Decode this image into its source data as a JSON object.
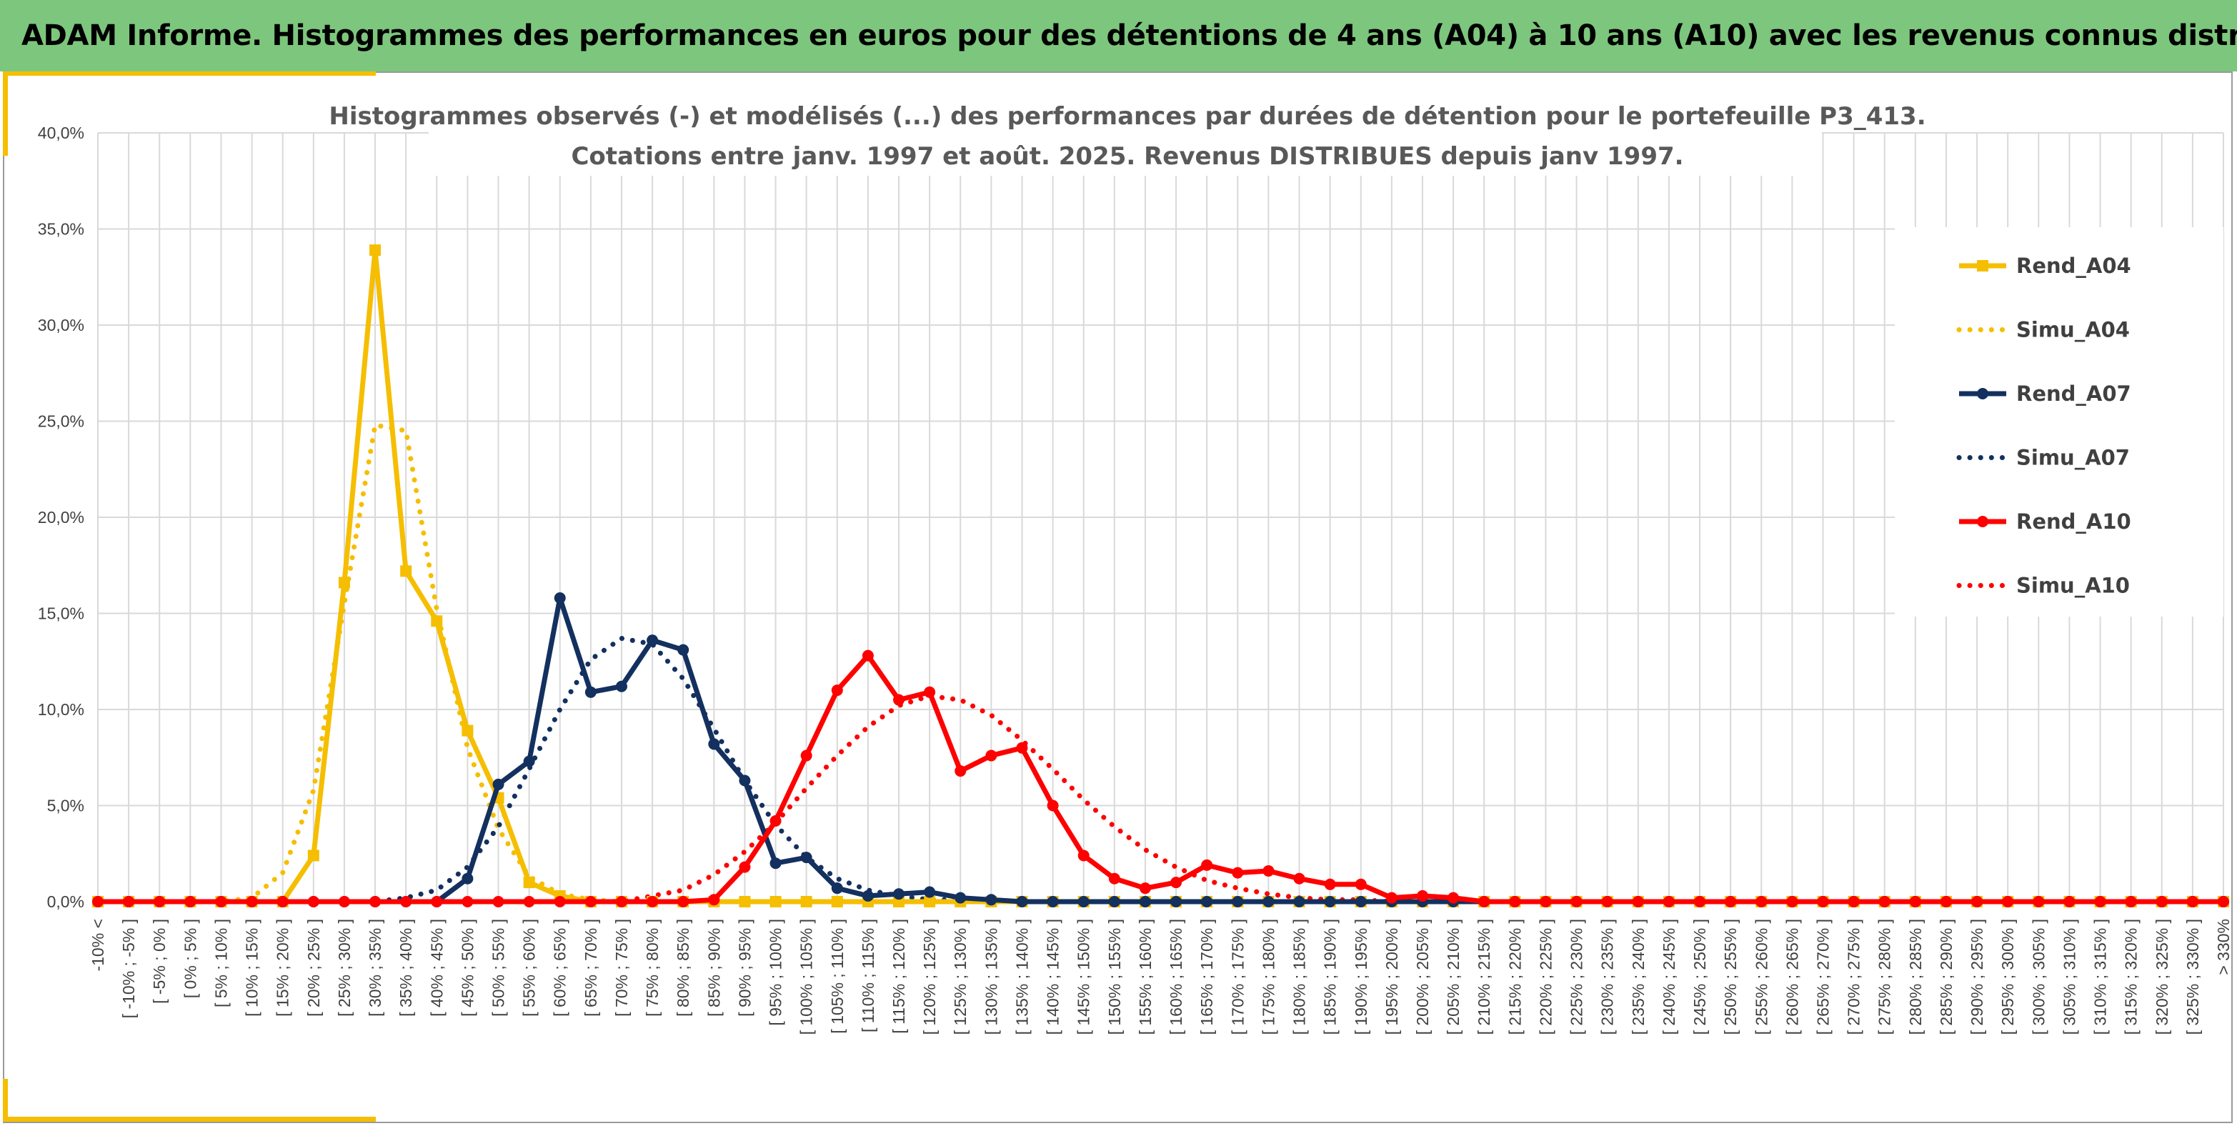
{
  "banner": {
    "title": "ADAM Informe. Histogrammes des performances en euros pour des détentions de 4 ans (A04) à 10 ans (A10) avec les revenus connus distribués"
  },
  "colors": {
    "banner": "#7dc67d",
    "accent": "#f5be00",
    "A04": "#f5be00",
    "A07": "#13305f",
    "A10": "#ff0000"
  },
  "chart_data": {
    "type": "line",
    "title": [
      "Histogrammes observés (-) et modélisés (...) des performances par durées de détention pour le portefeuille P3_413.",
      "Cotations entre janv. 1997 et août. 2025. Revenus DISTRIBUES depuis janv 1997."
    ],
    "legend_position": "right",
    "grid": true,
    "ylim": [
      0,
      40
    ],
    "yticks": [
      "0,0%",
      "5,0%",
      "10,0%",
      "15,0%",
      "20,0%",
      "25,0%",
      "30,0%",
      "35,0%",
      "40,0%"
    ],
    "categories": [
      "-10% <",
      "[ -10% ; -5% ]",
      "[ -5% ; 0% ]",
      "[ 0% ; 5% ]",
      "[ 5% ; 10% ]",
      "[ 10% ; 15% ]",
      "[ 15% ; 20% ]",
      "[ 20% ; 25% ]",
      "[ 25% ; 30% ]",
      "[ 30% ; 35% ]",
      "[ 35% ; 40% ]",
      "[ 40% ; 45% ]",
      "[ 45% ; 50% ]",
      "[ 50% ; 55% ]",
      "[ 55% ; 60% ]",
      "[ 60% ; 65% ]",
      "[ 65% ; 70% ]",
      "[ 70% ; 75% ]",
      "[ 75% ; 80% ]",
      "[ 80% ; 85% ]",
      "[ 85% ; 90% ]",
      "[ 90% ; 95% ]",
      "[ 95% ; 100% ]",
      "[ 100% ; 105% ]",
      "[ 105% ; 110% ]",
      "[ 110% ; 115% ]",
      "[ 115% ; 120% ]",
      "[ 120% ; 125% ]",
      "[ 125% ; 130% ]",
      "[ 130% ; 135% ]",
      "[ 135% ; 140% ]",
      "[ 140% ; 145% ]",
      "[ 145% ; 150% ]",
      "[ 150% ; 155% ]",
      "[ 155% ; 160% ]",
      "[ 160% ; 165% ]",
      "[ 165% ; 170% ]",
      "[ 170% ; 175% ]",
      "[ 175% ; 180% ]",
      "[ 180% ; 185% ]",
      "[ 185% ; 190% ]",
      "[ 190% ; 195% ]",
      "[ 195% ; 200% ]",
      "[ 200% ; 205% ]",
      "[ 205% ; 210% ]",
      "[ 210% ; 215% ]",
      "[ 215% ; 220% ]",
      "[ 220% ; 225% ]",
      "[ 225% ; 230% ]",
      "[ 230% ; 235% ]",
      "[ 235% ; 240% ]",
      "[ 240% ; 245% ]",
      "[ 245% ; 250% ]",
      "[ 250% ; 255% ]",
      "[ 255% ; 260% ]",
      "[ 260% ; 265% ]",
      "[ 265% ; 270% ]",
      "[ 270% ; 275% ]",
      "[ 275% ; 280% ]",
      "[ 280% ; 285% ]",
      "[ 285% ; 290% ]",
      "[ 290% ; 295% ]",
      "[ 295% ; 300% ]",
      "[ 300% ; 305% ]",
      "[ 305% ; 310% ]",
      "[ 310% ; 315% ]",
      "[ 315% ; 320% ]",
      "[ 320% ; 325% ]",
      "[ 325% ; 330% ]",
      "> 330%"
    ],
    "series": [
      {
        "name": "Rend_A04",
        "style": "solid",
        "marker": "square",
        "color": "#f5be00",
        "values": [
          0,
          0,
          0,
          0,
          0,
          0,
          0,
          2.4,
          16.6,
          33.9,
          17.2,
          14.6,
          8.9,
          5.4,
          1.0,
          0.3,
          0,
          0,
          0,
          0,
          0,
          0,
          0,
          0,
          0,
          0,
          0,
          0,
          0,
          0,
          0,
          0,
          0,
          0,
          0,
          0,
          0,
          0,
          0,
          0,
          0,
          0,
          0,
          0,
          0,
          0,
          0,
          0,
          0,
          0,
          0,
          0,
          0,
          0,
          0,
          0,
          0,
          0,
          0,
          0,
          0,
          0,
          0,
          0,
          0,
          0,
          0,
          0,
          0,
          0
        ]
      },
      {
        "name": "Simu_A04",
        "style": "dotted",
        "marker": "none",
        "color": "#f5be00",
        "values": [
          0,
          0,
          0,
          0,
          0,
          0.2,
          1.5,
          5.8,
          15.5,
          24.8,
          24.5,
          15.2,
          8.0,
          3.8,
          1.3,
          0.4,
          0.1,
          0,
          0,
          0,
          0,
          0,
          0,
          0,
          0,
          0,
          0,
          0,
          0,
          0,
          0,
          0,
          0,
          0,
          0,
          0,
          0,
          0,
          0,
          0,
          0,
          0,
          0,
          0,
          0,
          0,
          0,
          0,
          0,
          0,
          0,
          0,
          0,
          0,
          0,
          0,
          0,
          0,
          0,
          0,
          0,
          0,
          0,
          0,
          0,
          0,
          0,
          0,
          0,
          0
        ]
      },
      {
        "name": "Rend_A07",
        "style": "solid",
        "marker": "circle",
        "color": "#13305f",
        "values": [
          0,
          0,
          0,
          0,
          0,
          0,
          0,
          0,
          0,
          0,
          0,
          0,
          1.2,
          6.1,
          7.3,
          15.8,
          10.9,
          11.2,
          13.6,
          13.1,
          8.2,
          6.3,
          2.0,
          2.3,
          0.7,
          0.3,
          0.4,
          0.5,
          0.2,
          0.1,
          0,
          0,
          0,
          0,
          0,
          0,
          0,
          0,
          0,
          0,
          0,
          0,
          0,
          0,
          0,
          0,
          0,
          0,
          0,
          0,
          0,
          0,
          0,
          0,
          0,
          0,
          0,
          0,
          0,
          0,
          0,
          0,
          0,
          0,
          0,
          0,
          0,
          0,
          0,
          0
        ]
      },
      {
        "name": "Simu_A07",
        "style": "dotted",
        "marker": "none",
        "color": "#13305f",
        "values": [
          0,
          0,
          0,
          0,
          0,
          0,
          0,
          0,
          0,
          0,
          0.2,
          0.6,
          1.8,
          3.9,
          6.9,
          10.0,
          12.6,
          13.7,
          13.4,
          11.6,
          9.0,
          6.3,
          4.0,
          2.3,
          1.2,
          0.6,
          0.3,
          0.1,
          0.1,
          0,
          0,
          0,
          0,
          0,
          0,
          0,
          0,
          0,
          0,
          0,
          0,
          0,
          0,
          0,
          0,
          0,
          0,
          0,
          0,
          0,
          0,
          0,
          0,
          0,
          0,
          0,
          0,
          0,
          0,
          0,
          0,
          0,
          0,
          0,
          0,
          0,
          0,
          0,
          0,
          0
        ]
      },
      {
        "name": "Rend_A10",
        "style": "solid",
        "marker": "circle",
        "color": "#ff0000",
        "values": [
          0,
          0,
          0,
          0,
          0,
          0,
          0,
          0,
          0,
          0,
          0,
          0,
          0,
          0,
          0,
          0,
          0,
          0,
          0,
          0,
          0.1,
          1.8,
          4.2,
          7.6,
          11.0,
          12.8,
          10.5,
          10.9,
          6.8,
          7.6,
          8.0,
          5.0,
          2.4,
          1.2,
          0.7,
          1.0,
          1.9,
          1.5,
          1.6,
          1.2,
          0.9,
          0.9,
          0.2,
          0.3,
          0.2,
          0,
          0,
          0,
          0,
          0,
          0,
          0,
          0,
          0,
          0,
          0,
          0,
          0,
          0,
          0,
          0,
          0,
          0,
          0,
          0,
          0,
          0,
          0,
          0,
          0
        ]
      },
      {
        "name": "Simu_A10",
        "style": "dotted",
        "marker": "none",
        "color": "#ff0000",
        "values": [
          0,
          0,
          0,
          0,
          0,
          0,
          0,
          0,
          0,
          0,
          0,
          0,
          0,
          0,
          0,
          0,
          0,
          0,
          0.3,
          0.6,
          1.4,
          2.6,
          4.1,
          5.9,
          7.6,
          9.1,
          10.2,
          10.7,
          10.5,
          9.7,
          8.4,
          6.9,
          5.3,
          3.9,
          2.7,
          1.8,
          1.1,
          0.7,
          0.4,
          0.2,
          0.1,
          0.1,
          0,
          0,
          0,
          0,
          0,
          0,
          0,
          0,
          0,
          0,
          0,
          0,
          0,
          0,
          0,
          0,
          0,
          0,
          0,
          0,
          0,
          0,
          0,
          0,
          0,
          0,
          0,
          0
        ]
      }
    ]
  }
}
